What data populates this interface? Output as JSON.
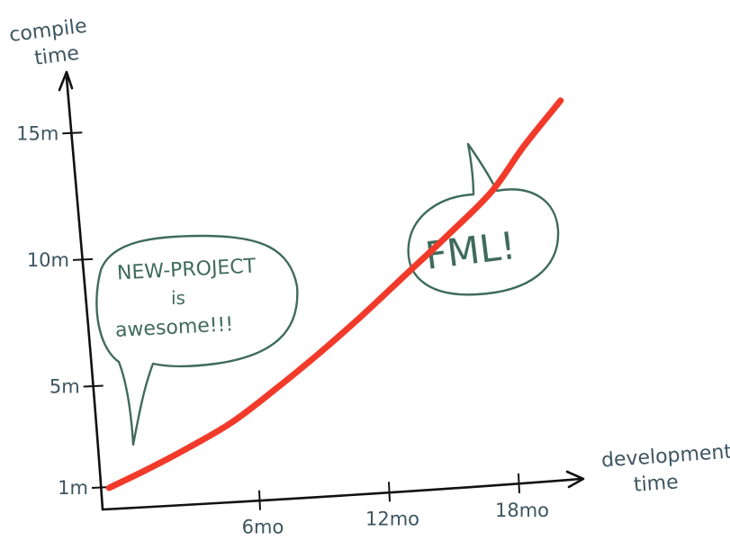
{
  "chart_data": {
    "type": "line",
    "title": "",
    "ylabel": [
      "compile",
      "time"
    ],
    "xlabel": [
      "development",
      "time"
    ],
    "xlim": [
      0,
      24
    ],
    "ylim": [
      1,
      17.5
    ],
    "x_ticks": [
      {
        "value": 6,
        "label": "6mo"
      },
      {
        "value": 12,
        "label": "12mo"
      },
      {
        "value": 18,
        "label": "18mo"
      }
    ],
    "y_ticks": [
      {
        "value": 1,
        "label": "1m"
      },
      {
        "value": 5,
        "label": "5m"
      },
      {
        "value": 10,
        "label": "10m"
      },
      {
        "value": 15,
        "label": "15m"
      }
    ],
    "grid": false,
    "legend": "none",
    "series": [
      {
        "color": "#f23a2a",
        "x": [
          0.3,
          2,
          4,
          6,
          8,
          10,
          12,
          14,
          16,
          18,
          19.5,
          21.2
        ],
        "y": [
          1.0,
          1.7,
          2.6,
          3.6,
          4.9,
          6.3,
          7.8,
          9.4,
          11.0,
          12.7,
          14.5,
          16.3
        ]
      }
    ],
    "annotations": [
      {
        "id": "bubble-left",
        "lines": [
          "NEW-PROJECT",
          "is",
          "awesome!!!"
        ],
        "color": "#3f6b5c"
      },
      {
        "id": "bubble-right",
        "lines": [
          "FML!"
        ],
        "color": "#3f6b5c"
      }
    ]
  }
}
